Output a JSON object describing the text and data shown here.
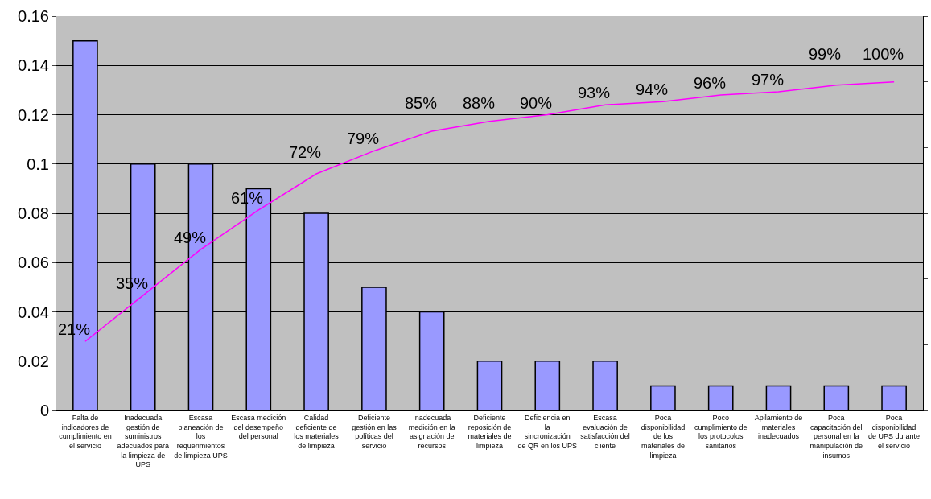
{
  "chart_data": {
    "type": "bar",
    "categories": [
      "Falta de indicadores de cumplimiento en el servicio",
      "Inadecuada gestión de suministros adecuados para la limpieza de UPS",
      "Escasa planeación de los requerimientos de limpieza UPS",
      "Escasa medición del desempeño del personal",
      "Calidad deficiente de los materiales de limpieza",
      "Deficiente gestión en las políticas del servicio",
      "Inadecuada medición en la asignación de recursos",
      "Deficiente reposición de materiales de limpieza",
      "Deficiencia en la sincronización de QR en los UPS",
      "Escasa evaluación de satisfacción del cliente",
      "Poca disponibilidad de los materiales de limpieza",
      "Poco cumplimiento de los protocolos sanitarios",
      "Apilamiento de materiales inadecuados",
      "Poca capacitación del personal en la manipulación de insumos",
      "Poca disponibilidad de UPS durante el servicio"
    ],
    "series": [
      {
        "color": "#9999ff",
        "values": [
          0.15,
          0.1,
          0.1,
          0.09,
          0.08,
          0.05,
          0.04,
          0.02,
          0.02,
          0.02,
          0.01,
          0.01,
          0.01,
          0.01,
          0.01
        ]
      },
      {
        "type": "line",
        "axis": "y2",
        "color": "#ff00ff",
        "values": [
          21,
          35,
          49,
          61,
          72,
          79,
          85,
          88,
          90,
          93,
          94,
          96,
          97,
          99,
          100
        ],
        "value_labels": [
          "21%",
          "35%",
          "49%",
          "61%",
          "72%",
          "79%",
          "85%",
          "88%",
          "90%",
          "93%",
          "94%",
          "96%",
          "97%",
          "99%",
          "100%"
        ]
      }
    ],
    "ylim": [
      0,
      0.16
    ],
    "yticks": [
      0,
      0.02,
      0.04,
      0.06,
      0.08,
      0.1,
      0.12,
      0.14,
      0.16
    ],
    "y2lim": [
      0,
      120
    ],
    "y2ticks": [
      {
        "value": 0,
        "label": null
      },
      {
        "value": 20,
        "label": null
      },
      {
        "value": 40,
        "label": null
      },
      {
        "value": 60,
        "label": null
      },
      {
        "value": 80,
        "label": null
      },
      {
        "value": 100,
        "label": null
      },
      {
        "value": 120,
        "label": null
      }
    ],
    "grid": "y",
    "legend": false,
    "marker": "none",
    "line_style": "solid"
  }
}
